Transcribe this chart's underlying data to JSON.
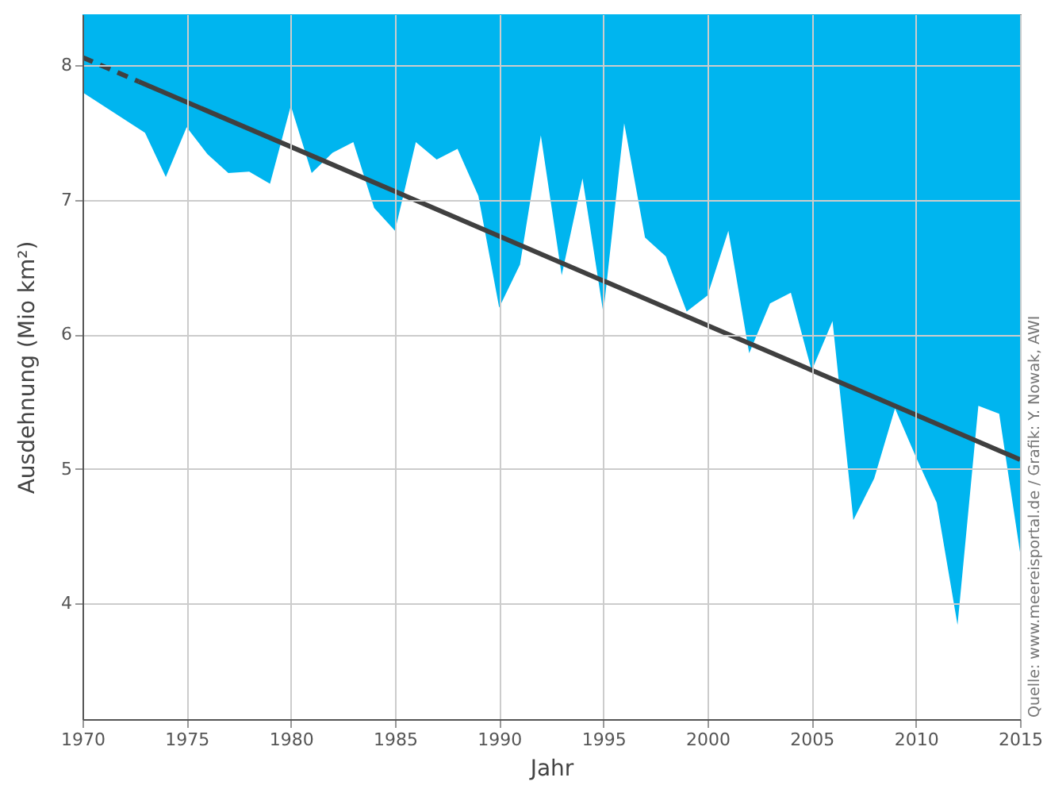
{
  "chart_data": {
    "type": "area",
    "xlabel": "Jahr",
    "ylabel": "Ausdehnung (Mio km²)",
    "x": [
      1970,
      1971,
      1972,
      1973,
      1974,
      1975,
      1976,
      1977,
      1978,
      1979,
      1980,
      1981,
      1982,
      1983,
      1984,
      1985,
      1986,
      1987,
      1988,
      1989,
      1990,
      1991,
      1992,
      1993,
      1994,
      1995,
      1996,
      1997,
      1998,
      1999,
      2000,
      2001,
      2002,
      2003,
      2004,
      2005,
      2006,
      2007,
      2008,
      2009,
      2010,
      2011,
      2012,
      2013,
      2014,
      2015
    ],
    "series": [
      {
        "color": "#ffffff",
        "values": [
          7.8,
          7.7,
          7.6,
          7.5,
          7.17,
          7.54,
          7.34,
          7.2,
          7.21,
          7.12,
          7.7,
          7.2,
          7.35,
          7.43,
          6.94,
          6.77,
          7.43,
          7.3,
          7.38,
          7.03,
          6.2,
          6.52,
          7.48,
          6.44,
          7.16,
          6.16,
          7.57,
          6.72,
          6.58,
          6.17,
          6.29,
          6.77,
          5.86,
          6.23,
          6.31,
          5.73,
          6.1,
          4.62,
          4.93,
          5.45,
          5.09,
          4.75,
          3.84,
          5.47,
          5.41,
          4.38
        ]
      },
      {
        "type": "line",
        "color": "#404040",
        "line_style": "dashed",
        "x": [
          1970,
          1972.7
        ],
        "values": [
          8.06,
          7.88
        ]
      },
      {
        "type": "line",
        "color": "#404040",
        "line_style": "solid",
        "x": [
          1972.7,
          2015
        ],
        "values": [
          7.88,
          5.07
        ]
      }
    ],
    "xlim": [
      1970,
      2015
    ],
    "ylim": [
      3.14,
      8.38
    ],
    "xticks": [
      1970,
      1975,
      1980,
      1985,
      1990,
      1995,
      2000,
      2005,
      2010,
      2015
    ],
    "yticks": [
      4,
      5,
      6,
      7,
      8
    ],
    "bands": [
      {
        "axis": "y",
        "from": 3.14,
        "to": 8.38,
        "color": "#00b5ef"
      }
    ],
    "grid": true,
    "annotations": [
      "Quelle: www.meereisportal.de / Grafik: Y. Nowak, AWI"
    ]
  }
}
